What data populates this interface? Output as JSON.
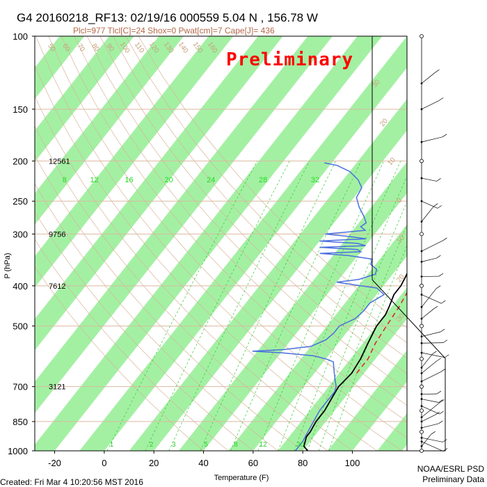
{
  "chart_data": {
    "type": "line",
    "title": "G4 20160218_RF13: 02/19/16 000559   5.04 N , 156.78 W",
    "subtitle": "Plcl=977 Tlcl[C]=24 Shox=0 Pwat[cm]=7 Cape[J]= 436",
    "watermark": "Preliminary",
    "xlabel": "Temperature (F)",
    "ylabel": "P (hPa)",
    "x_ticks": [
      "-20",
      "0",
      "20",
      "40",
      "60",
      "80",
      "100"
    ],
    "x_tick_values": [
      -20,
      0,
      20,
      40,
      60,
      80,
      100
    ],
    "xlim": [
      -28,
      122
    ],
    "y_ticks": [
      "100",
      "150",
      "200",
      "250",
      "300",
      "400",
      "500",
      "700",
      "850",
      "1000"
    ],
    "y_tick_values": [
      100,
      150,
      200,
      250,
      300,
      400,
      500,
      700,
      850,
      1000
    ],
    "ylim": [
      1000,
      100
    ],
    "y_scale": "log",
    "height_labels": [
      {
        "p": 200,
        "text": "12561"
      },
      {
        "p": 300,
        "text": "9756"
      },
      {
        "p": 400,
        "text": "7612"
      },
      {
        "p": 700,
        "text": "3121"
      }
    ],
    "mixing_ratio_labels_top": [
      {
        "text": "8",
        "x": -16
      },
      {
        "text": "12",
        "x": -4
      },
      {
        "text": "16",
        "x": 10
      },
      {
        "text": "20",
        "x": 26
      },
      {
        "text": "24",
        "x": 43
      },
      {
        "text": "28",
        "x": 64
      },
      {
        "text": "32",
        "x": 85
      }
    ],
    "mixing_ratio_labels_bottom": [
      {
        "text": "1",
        "x": 3
      },
      {
        "text": "2",
        "x": 19
      },
      {
        "text": "3",
        "x": 28
      },
      {
        "text": "5",
        "x": 41
      },
      {
        "text": "8",
        "x": 53
      },
      {
        "text": "12",
        "x": 64
      },
      {
        "text": "20",
        "x": 79
      }
    ],
    "dry_adiabat_labels_top": [
      "50",
      "60",
      "70",
      "80",
      "90",
      "100",
      "110",
      "120",
      "130",
      "140",
      "150",
      "160"
    ],
    "moist_adiabat_labels_right": [
      "30",
      "20",
      "10",
      "0",
      "10",
      "20",
      "30"
    ],
    "series": [
      {
        "role": "temperature",
        "color": "#000000",
        "points": [
          {
            "p": 1000,
            "t": 82
          },
          {
            "p": 975,
            "t": 79
          },
          {
            "p": 950,
            "t": 78
          },
          {
            "p": 925,
            "t": 77
          },
          {
            "p": 900,
            "t": 77
          },
          {
            "p": 850,
            "t": 76
          },
          {
            "p": 800,
            "t": 76
          },
          {
            "p": 750,
            "t": 75
          },
          {
            "p": 700,
            "t": 74
          },
          {
            "p": 650,
            "t": 75
          },
          {
            "p": 600,
            "t": 74
          },
          {
            "p": 550,
            "t": 72
          },
          {
            "p": 500,
            "t": 70
          },
          {
            "p": 470,
            "t": 70
          },
          {
            "p": 450,
            "t": 69
          },
          {
            "p": 420,
            "t": 67
          },
          {
            "p": 400,
            "t": 67
          },
          {
            "p": 380,
            "t": 66
          },
          {
            "p": 350,
            "t": 64
          },
          {
            "p": 320,
            "t": 60
          },
          {
            "p": 300,
            "t": 57
          },
          {
            "p": 280,
            "t": 53
          },
          {
            "p": 250,
            "t": 47
          },
          {
            "p": 230,
            "t": 43
          },
          {
            "p": 210,
            "t": 40
          },
          {
            "p": 200,
            "t": 38
          },
          {
            "p": 190,
            "t": 37
          },
          {
            "p": 185,
            "t": 37
          }
        ]
      },
      {
        "role": "dewpoint",
        "color": "#4a6fe0",
        "points": [
          {
            "p": 1000,
            "t": 77
          },
          {
            "p": 950,
            "t": 77
          },
          {
            "p": 900,
            "t": 76
          },
          {
            "p": 850,
            "t": 75
          },
          {
            "p": 800,
            "t": 74
          },
          {
            "p": 750,
            "t": 74
          },
          {
            "p": 720,
            "t": 74
          },
          {
            "p": 700,
            "t": 73
          },
          {
            "p": 670,
            "t": 70
          },
          {
            "p": 640,
            "t": 67
          },
          {
            "p": 610,
            "t": 64
          },
          {
            "p": 600,
            "t": 60
          },
          {
            "p": 590,
            "t": 54
          },
          {
            "p": 580,
            "t": 40
          },
          {
            "p": 575,
            "t": 28
          },
          {
            "p": 570,
            "t": 40
          },
          {
            "p": 560,
            "t": 50
          },
          {
            "p": 540,
            "t": 54
          },
          {
            "p": 520,
            "t": 55
          },
          {
            "p": 500,
            "t": 55
          },
          {
            "p": 480,
            "t": 59
          },
          {
            "p": 460,
            "t": 60
          },
          {
            "p": 440,
            "t": 60
          },
          {
            "p": 420,
            "t": 63
          },
          {
            "p": 405,
            "t": 58
          },
          {
            "p": 398,
            "t": 48
          },
          {
            "p": 392,
            "t": 40
          },
          {
            "p": 386,
            "t": 48
          },
          {
            "p": 375,
            "t": 53
          },
          {
            "p": 365,
            "t": 52
          },
          {
            "p": 355,
            "t": 48
          },
          {
            "p": 345,
            "t": 47
          },
          {
            "p": 338,
            "t": 36
          },
          {
            "p": 334,
            "t": 24
          },
          {
            "p": 331,
            "t": 40
          },
          {
            "p": 327,
            "t": 38
          },
          {
            "p": 323,
            "t": 22
          },
          {
            "p": 320,
            "t": 40
          },
          {
            "p": 316,
            "t": 36
          },
          {
            "p": 312,
            "t": 20
          },
          {
            "p": 308,
            "t": 38
          },
          {
            "p": 304,
            "t": 30
          },
          {
            "p": 300,
            "t": 20
          },
          {
            "p": 294,
            "t": 35
          },
          {
            "p": 288,
            "t": 32
          },
          {
            "p": 282,
            "t": 33
          },
          {
            "p": 272,
            "t": 30
          },
          {
            "p": 258,
            "t": 25
          },
          {
            "p": 245,
            "t": 21
          },
          {
            "p": 232,
            "t": 20
          },
          {
            "p": 222,
            "t": 16
          },
          {
            "p": 212,
            "t": 10
          },
          {
            "p": 205,
            "t": 3
          },
          {
            "p": 202,
            "t": -3
          }
        ]
      },
      {
        "role": "parcel",
        "color": "#dd2222",
        "points": [
          {
            "p": 650,
            "t": 77
          },
          {
            "p": 600,
            "t": 77
          },
          {
            "p": 550,
            "t": 75
          },
          {
            "p": 500,
            "t": 74
          },
          {
            "p": 450,
            "t": 73
          },
          {
            "p": 400,
            "t": 71
          },
          {
            "p": 350,
            "t": 68
          },
          {
            "p": 300,
            "t": 64
          },
          {
            "p": 250,
            "t": 56
          },
          {
            "p": 220,
            "t": 50
          },
          {
            "p": 200,
            "t": 44
          },
          {
            "p": 195,
            "t": 42
          }
        ]
      }
    ],
    "wind_staff_levels_hpa": [
      100,
      130,
      150,
      180,
      200,
      220,
      250,
      280,
      300,
      330,
      350,
      380,
      400,
      420,
      450,
      480,
      500,
      530,
      550,
      580,
      600,
      630,
      650,
      680,
      700,
      730,
      750,
      780,
      800,
      830,
      850,
      880,
      900,
      930,
      950,
      975,
      1000
    ],
    "footer_left": "Created: Fri Mar  4 10:20:56 MST 2016",
    "footer_right_1": "NOAA/ESRL PSD",
    "footer_right_2": "Preliminary Data",
    "colors": {
      "stripe": "#a3f0a3",
      "isobar": "#dcb9a0",
      "adiabat": "#d8b49a",
      "mixing": "#2ecc2e",
      "temperature": "#000000",
      "dewpoint": "#4a6fe0",
      "parcel": "#dd2222"
    }
  }
}
